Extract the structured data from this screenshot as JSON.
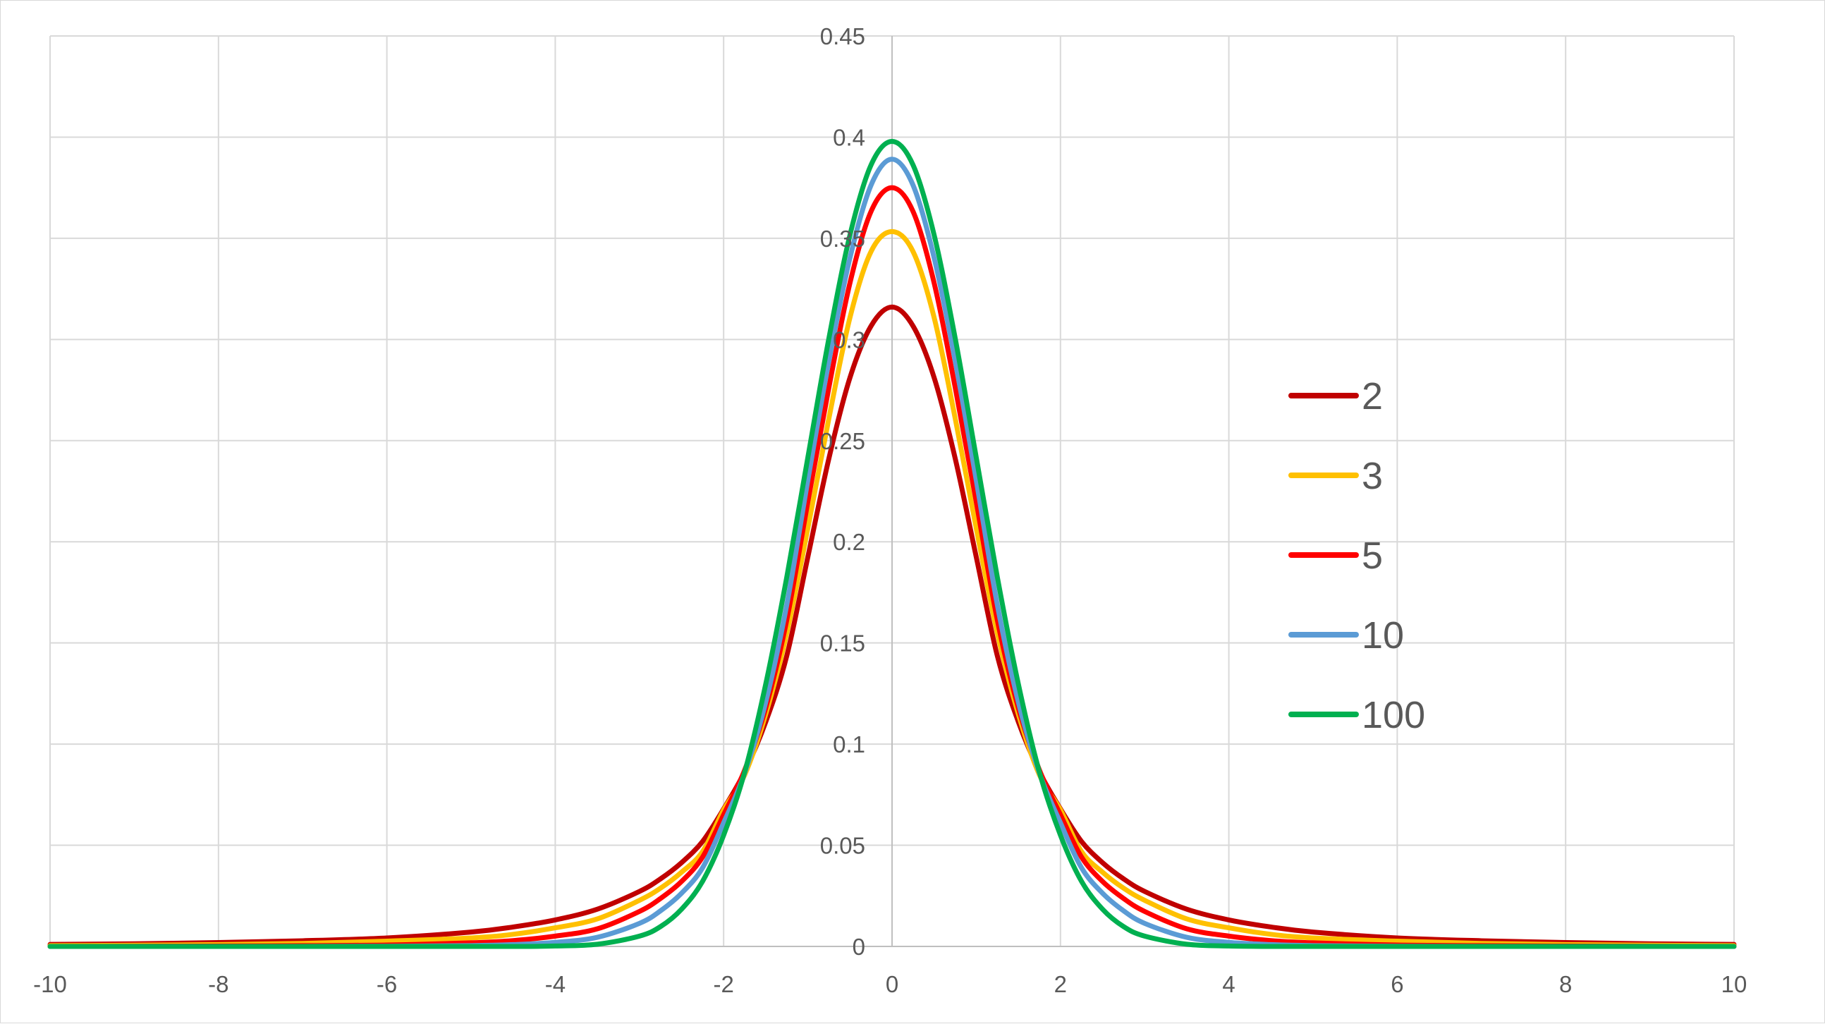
{
  "chart_data": {
    "type": "line",
    "title": "",
    "xlabel": "",
    "ylabel": "",
    "xlim": [
      -10,
      10
    ],
    "ylim": [
      0,
      0.45
    ],
    "grid": true,
    "legend_position": "right",
    "x_ticks": [
      -10,
      -8,
      -6,
      -4,
      -2,
      0,
      2,
      4,
      6,
      8,
      10
    ],
    "y_ticks": [
      0,
      0.05,
      0.1,
      0.15,
      0.2,
      0.25,
      0.3,
      0.35,
      0.4,
      0.45
    ],
    "x_tick_labels": [
      "-10",
      "-8",
      "-6",
      "-4",
      "-2",
      "0",
      "2",
      "4",
      "6",
      "8",
      "10"
    ],
    "y_tick_labels": [
      "0",
      "0.05",
      "0.1",
      "0.15",
      "0.2",
      "0.25",
      "0.3",
      "0.35",
      "0.4",
      "0.45"
    ],
    "x": [
      -10,
      -9,
      -8,
      -7,
      -6,
      -5,
      -4.5,
      -4,
      -3.5,
      -3,
      -2.75,
      -2.5,
      -2.25,
      -2,
      -1.75,
      -1.5,
      -1.25,
      -1,
      -0.75,
      -0.5,
      -0.25,
      0,
      0.25,
      0.5,
      0.75,
      1,
      1.25,
      1.5,
      1.75,
      2,
      2.25,
      2.5,
      2.75,
      3,
      3.5,
      4,
      4.5,
      5,
      6,
      7,
      8,
      9,
      10
    ],
    "series": [
      {
        "name": "2",
        "color": "#C00000",
        "values": [
          0.001,
          0.0013,
          0.0019,
          0.0028,
          0.0042,
          0.0071,
          0.0096,
          0.0131,
          0.0184,
          0.0272,
          0.0334,
          0.0414,
          0.0519,
          0.068,
          0.0864,
          0.111,
          0.1437,
          0.1925,
          0.2412,
          0.2811,
          0.3066,
          0.316,
          0.3066,
          0.2811,
          0.2412,
          0.1925,
          0.1437,
          0.111,
          0.0864,
          0.068,
          0.0519,
          0.0414,
          0.0334,
          0.0272,
          0.0184,
          0.0131,
          0.0096,
          0.0071,
          0.0042,
          0.0028,
          0.0019,
          0.0013,
          0.001
        ]
      },
      {
        "name": "3",
        "color": "#FFC000",
        "values": [
          0.0004,
          0.0006,
          0.0009,
          0.0015,
          0.0026,
          0.0042,
          0.006,
          0.0092,
          0.0136,
          0.0228,
          0.0288,
          0.0367,
          0.0469,
          0.0675,
          0.0848,
          0.1148,
          0.1549,
          0.2067,
          0.261,
          0.3108,
          0.3434,
          0.3533,
          0.3434,
          0.3108,
          0.261,
          0.2067,
          0.1549,
          0.1148,
          0.0848,
          0.0675,
          0.0469,
          0.0367,
          0.0288,
          0.0228,
          0.0136,
          0.0092,
          0.006,
          0.0042,
          0.0026,
          0.0015,
          0.0009,
          0.0006,
          0.0004
        ]
      },
      {
        "name": "5",
        "color": "#FF0000",
        "values": [
          0.0,
          0.0001,
          0.0002,
          0.0004,
          0.0007,
          0.0018,
          0.0029,
          0.0051,
          0.0087,
          0.0173,
          0.0237,
          0.0321,
          0.0442,
          0.0651,
          0.0872,
          0.1179,
          0.1614,
          0.2197,
          0.2763,
          0.3279,
          0.3632,
          0.375,
          0.3632,
          0.3279,
          0.2763,
          0.2197,
          0.1614,
          0.1179,
          0.0872,
          0.0651,
          0.0442,
          0.0321,
          0.0237,
          0.0173,
          0.0087,
          0.0051,
          0.0029,
          0.0018,
          0.0007,
          0.0004,
          0.0002,
          0.0001,
          0.0
        ]
      },
      {
        "name": "10",
        "color": "#5B9BD5",
        "values": [
          0.0,
          0.0,
          0.0,
          0.0,
          0.0001,
          0.0004,
          0.0009,
          0.002,
          0.0045,
          0.0114,
          0.0176,
          0.0263,
          0.0389,
          0.0611,
          0.0857,
          0.1208,
          0.1689,
          0.2304,
          0.2894,
          0.3403,
          0.3762,
          0.3891,
          0.3762,
          0.3403,
          0.2894,
          0.2304,
          0.1689,
          0.1208,
          0.0857,
          0.0611,
          0.0389,
          0.0263,
          0.0176,
          0.0114,
          0.0045,
          0.002,
          0.0009,
          0.0004,
          0.0001,
          0.0,
          0.0,
          0.0,
          0.0
        ]
      },
      {
        "name": "100",
        "color": "#00B050",
        "values": [
          0.0,
          0.0,
          0.0,
          0.0,
          0.0,
          0.0,
          0.0,
          0.0002,
          0.0011,
          0.0051,
          0.0098,
          0.0184,
          0.0322,
          0.055,
          0.0862,
          0.1297,
          0.1826,
          0.2417,
          0.3006,
          0.3516,
          0.3862,
          0.3979,
          0.3862,
          0.3516,
          0.3006,
          0.2417,
          0.1826,
          0.1297,
          0.0862,
          0.055,
          0.0322,
          0.0184,
          0.0098,
          0.0051,
          0.0011,
          0.0002,
          0.0,
          0.0,
          0.0,
          0.0,
          0.0,
          0.0,
          0.0
        ]
      }
    ]
  }
}
